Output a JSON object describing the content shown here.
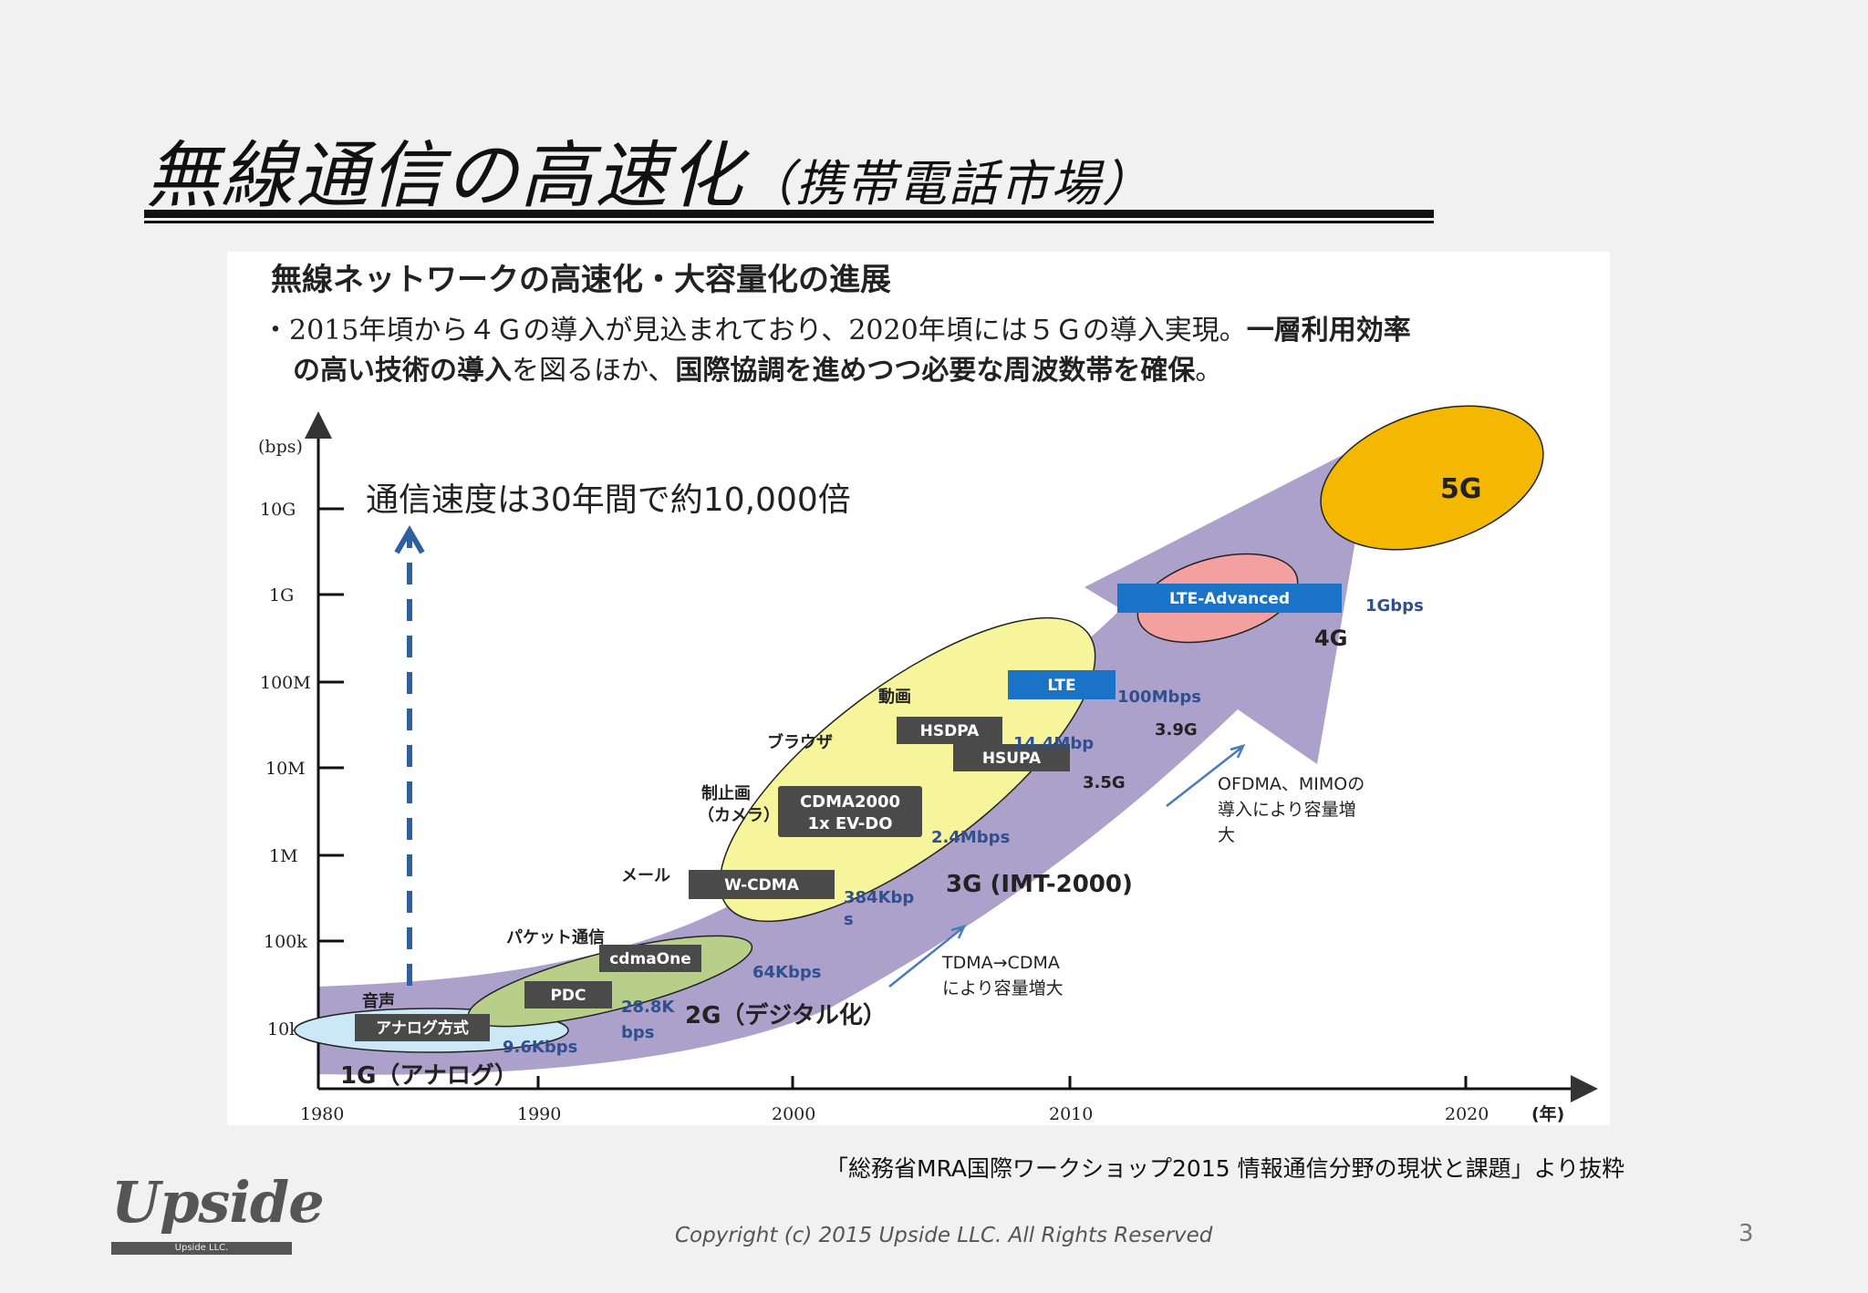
{
  "slide": {
    "title": "無線通信の高速化",
    "subtitle": "（携帯電話市場）",
    "source": "「総務省MRA国際ワークショップ2015 情報通信分野の現状と課題」より抜粋",
    "copyright": "Copyright (c) 2015 Upside LLC.  All Rights Reserved",
    "page_number": "3",
    "logo_text": "Upside",
    "logo_subtext": "Upside LLC."
  },
  "figure": {
    "heading": "無線ネットワークの高速化・大容量化の進展",
    "bullet_line1_a": "・2015年頃から４Ｇの導入が見込まれており、2020年頃には５Ｇの導入実現。",
    "bullet_line1_b": "一層利用効率",
    "bullet_line2_a": "の高い技術の導入",
    "bullet_line2_b": "を図るほか、",
    "bullet_line2_c": "国際協調を進めつつ必要な周波数帯を確保",
    "bullet_line2_d": "。",
    "y_unit": "(bps)",
    "y_ticks": [
      "10k",
      "100k",
      "1M",
      "10M",
      "100M",
      "1G",
      "10G"
    ],
    "x_ticks": [
      "1980",
      "1990",
      "2000",
      "2010",
      "2020"
    ],
    "x_unit": "(年)",
    "headline": "通信速度は30年間で約10,000倍",
    "generations": {
      "g1": "1G（アナログ）",
      "g2": "2G（デジタル化）",
      "g3": "3G (IMT-2000)",
      "g4": "4G",
      "g5": "5G",
      "g39": "3.9G",
      "g35": "3.5G"
    },
    "boxes": {
      "analog": "アナログ方式",
      "pdc": "PDC",
      "cdmaone": "cdmaOne",
      "wcdma": "W-CDMA",
      "cdma2000_1": "CDMA2000",
      "cdma2000_2": "1x EV-DO",
      "hsdpa": "HSDPA",
      "hsupa": "HSUPA",
      "lte": "LTE",
      "lteadv": "LTE-Advanced"
    },
    "speeds": {
      "s96": "9.6Kbps",
      "s288a": "28.8K",
      "s288b": "bps",
      "s64": "64Kbps",
      "s384a": "384Kbp",
      "s384b": "s",
      "s24": "2.4Mbps",
      "s144": "14.4Mbp",
      "s100": "100Mbps",
      "s1g": "1Gbps"
    },
    "services": {
      "voice": "音声",
      "packet": "パケット通信",
      "mail": "メール",
      "still_a": "制止画",
      "still_b": "（カメラ）",
      "browser": "ブラウザ",
      "video": "動画"
    },
    "notes": {
      "tdma_1": "TDMA→CDMA",
      "tdma_2": "により容量増大",
      "ofdma_1": "OFDMA、MIMOの",
      "ofdma_2": "導入により容量増",
      "ofdma_3": "大"
    },
    "colors": {
      "arrow": "#a89cc8",
      "g1": "#cce8f6",
      "g2": "#b8cf8a",
      "g3": "#f7f59c",
      "g4": "#f4a0a0",
      "g5": "#f5b800",
      "box": "#4a4a4a",
      "lte": "#1a73c6",
      "speed": "#2f4f8f"
    }
  }
}
